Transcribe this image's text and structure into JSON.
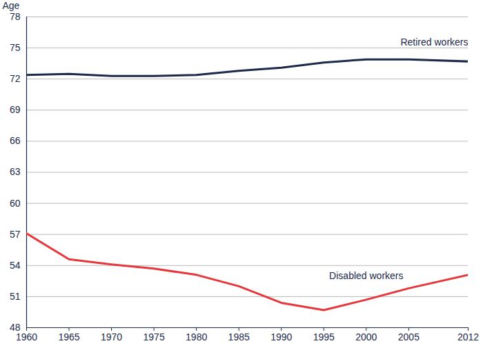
{
  "chart_data": {
    "type": "line",
    "y_label": "Age",
    "x": [
      1960,
      1965,
      1970,
      1975,
      1980,
      1985,
      1990,
      1995,
      2000,
      2005,
      2012
    ],
    "series": [
      {
        "name": "Retired workers",
        "color": "#1b2a4a",
        "values": [
          72.4,
          72.5,
          72.3,
          72.3,
          72.4,
          72.8,
          73.1,
          73.6,
          73.9,
          73.9,
          73.7
        ]
      },
      {
        "name": "Disabled workers",
        "color": "#e5373c",
        "values": [
          57.1,
          54.6,
          54.1,
          53.7,
          53.1,
          52.0,
          50.4,
          49.7,
          50.7,
          51.8,
          53.1
        ]
      }
    ],
    "xlim": [
      1960,
      2012
    ],
    "xticks": [
      1960,
      1965,
      1970,
      1975,
      1980,
      1985,
      1990,
      1995,
      2000,
      2005,
      2012
    ],
    "ylim": [
      48,
      78
    ],
    "yticks": [
      48,
      51,
      54,
      57,
      60,
      63,
      66,
      69,
      72,
      75,
      78
    ],
    "grid": true
  }
}
